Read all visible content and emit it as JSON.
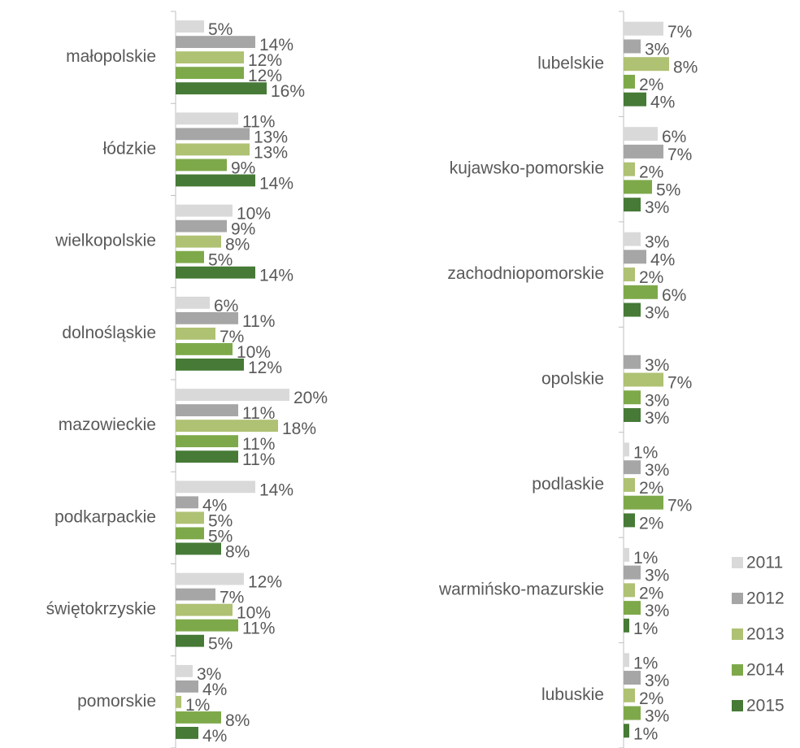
{
  "chart_data": [
    {
      "type": "bar",
      "orientation": "horizontal",
      "categories": [
        "małopolskie",
        "łódzkie",
        "wielkopolskie",
        "dolnośląskie",
        "mazowieckie",
        "podkarpackie",
        "świętokrzyskie",
        "pomorskie"
      ],
      "xlim": [
        0,
        20
      ],
      "series": [
        {
          "color": "#d9d9d9",
          "values": [
            5,
            11,
            10,
            6,
            20,
            14,
            12,
            3
          ],
          "value_labels": [
            "5%",
            "11%",
            "10%",
            "6%",
            "20%",
            "14%",
            "12%",
            "3%"
          ]
        },
        {
          "color": "#a6a6a6",
          "values": [
            14,
            13,
            9,
            11,
            11,
            4,
            7,
            4
          ],
          "value_labels": [
            "14%",
            "13%",
            "9%",
            "11%",
            "11%",
            "4%",
            "7%",
            "4%"
          ]
        },
        {
          "color": "#afc173",
          "values": [
            12,
            13,
            8,
            7,
            18,
            5,
            10,
            1
          ],
          "value_labels": [
            "12%",
            "13%",
            "8%",
            "7%",
            "18%",
            "5%",
            "10%",
            "1%"
          ]
        },
        {
          "color": "#7ea94a",
          "values": [
            12,
            9,
            5,
            10,
            11,
            5,
            11,
            8
          ],
          "value_labels": [
            "12%",
            "9%",
            "5%",
            "10%",
            "11%",
            "5%",
            "11%",
            "8%"
          ]
        },
        {
          "color": "#467a36",
          "values": [
            16,
            14,
            14,
            12,
            11,
            8,
            5,
            4
          ],
          "value_labels": [
            "16%",
            "14%",
            "14%",
            "12%",
            "11%",
            "8%",
            "5%",
            "4%"
          ]
        }
      ]
    },
    {
      "type": "bar",
      "orientation": "horizontal",
      "categories": [
        "lubelskie",
        "kujawsko-pomorskie",
        "zachodniopomorskie",
        "opolskie",
        "podlaskie",
        "warmińsko-mazurskie",
        "lubuskie"
      ],
      "xlim": [
        0,
        20
      ],
      "legend": "bottom-right",
      "series": [
        {
          "name": "2011",
          "color": "#d9d9d9",
          "values": [
            7,
            6,
            3,
            null,
            1,
            1,
            1
          ],
          "value_labels": [
            "7%",
            "6%",
            "3%",
            null,
            "1%",
            "1%",
            "1%"
          ]
        },
        {
          "name": "2012",
          "color": "#a6a6a6",
          "values": [
            3,
            7,
            4,
            3,
            3,
            3,
            3
          ],
          "value_labels": [
            "3%",
            "7%",
            "4%",
            "3%",
            "3%",
            "3%",
            "3%"
          ]
        },
        {
          "name": "2013",
          "color": "#afc173",
          "values": [
            8,
            2,
            2,
            7,
            2,
            2,
            2
          ],
          "value_labels": [
            "8%",
            "2%",
            "2%",
            "7%",
            "2%",
            "2%",
            "2%"
          ]
        },
        {
          "name": "2014",
          "color": "#7ea94a",
          "values": [
            2,
            5,
            6,
            3,
            7,
            3,
            3
          ],
          "value_labels": [
            "2%",
            "5%",
            "6%",
            "3%",
            "7%",
            "3%",
            "3%"
          ]
        },
        {
          "name": "2015",
          "color": "#467a36",
          "values": [
            4,
            3,
            3,
            3,
            2,
            1,
            1
          ],
          "value_labels": [
            "4%",
            "3%",
            "3%",
            "3%",
            "2%",
            "1%",
            "1%"
          ]
        }
      ]
    }
  ]
}
